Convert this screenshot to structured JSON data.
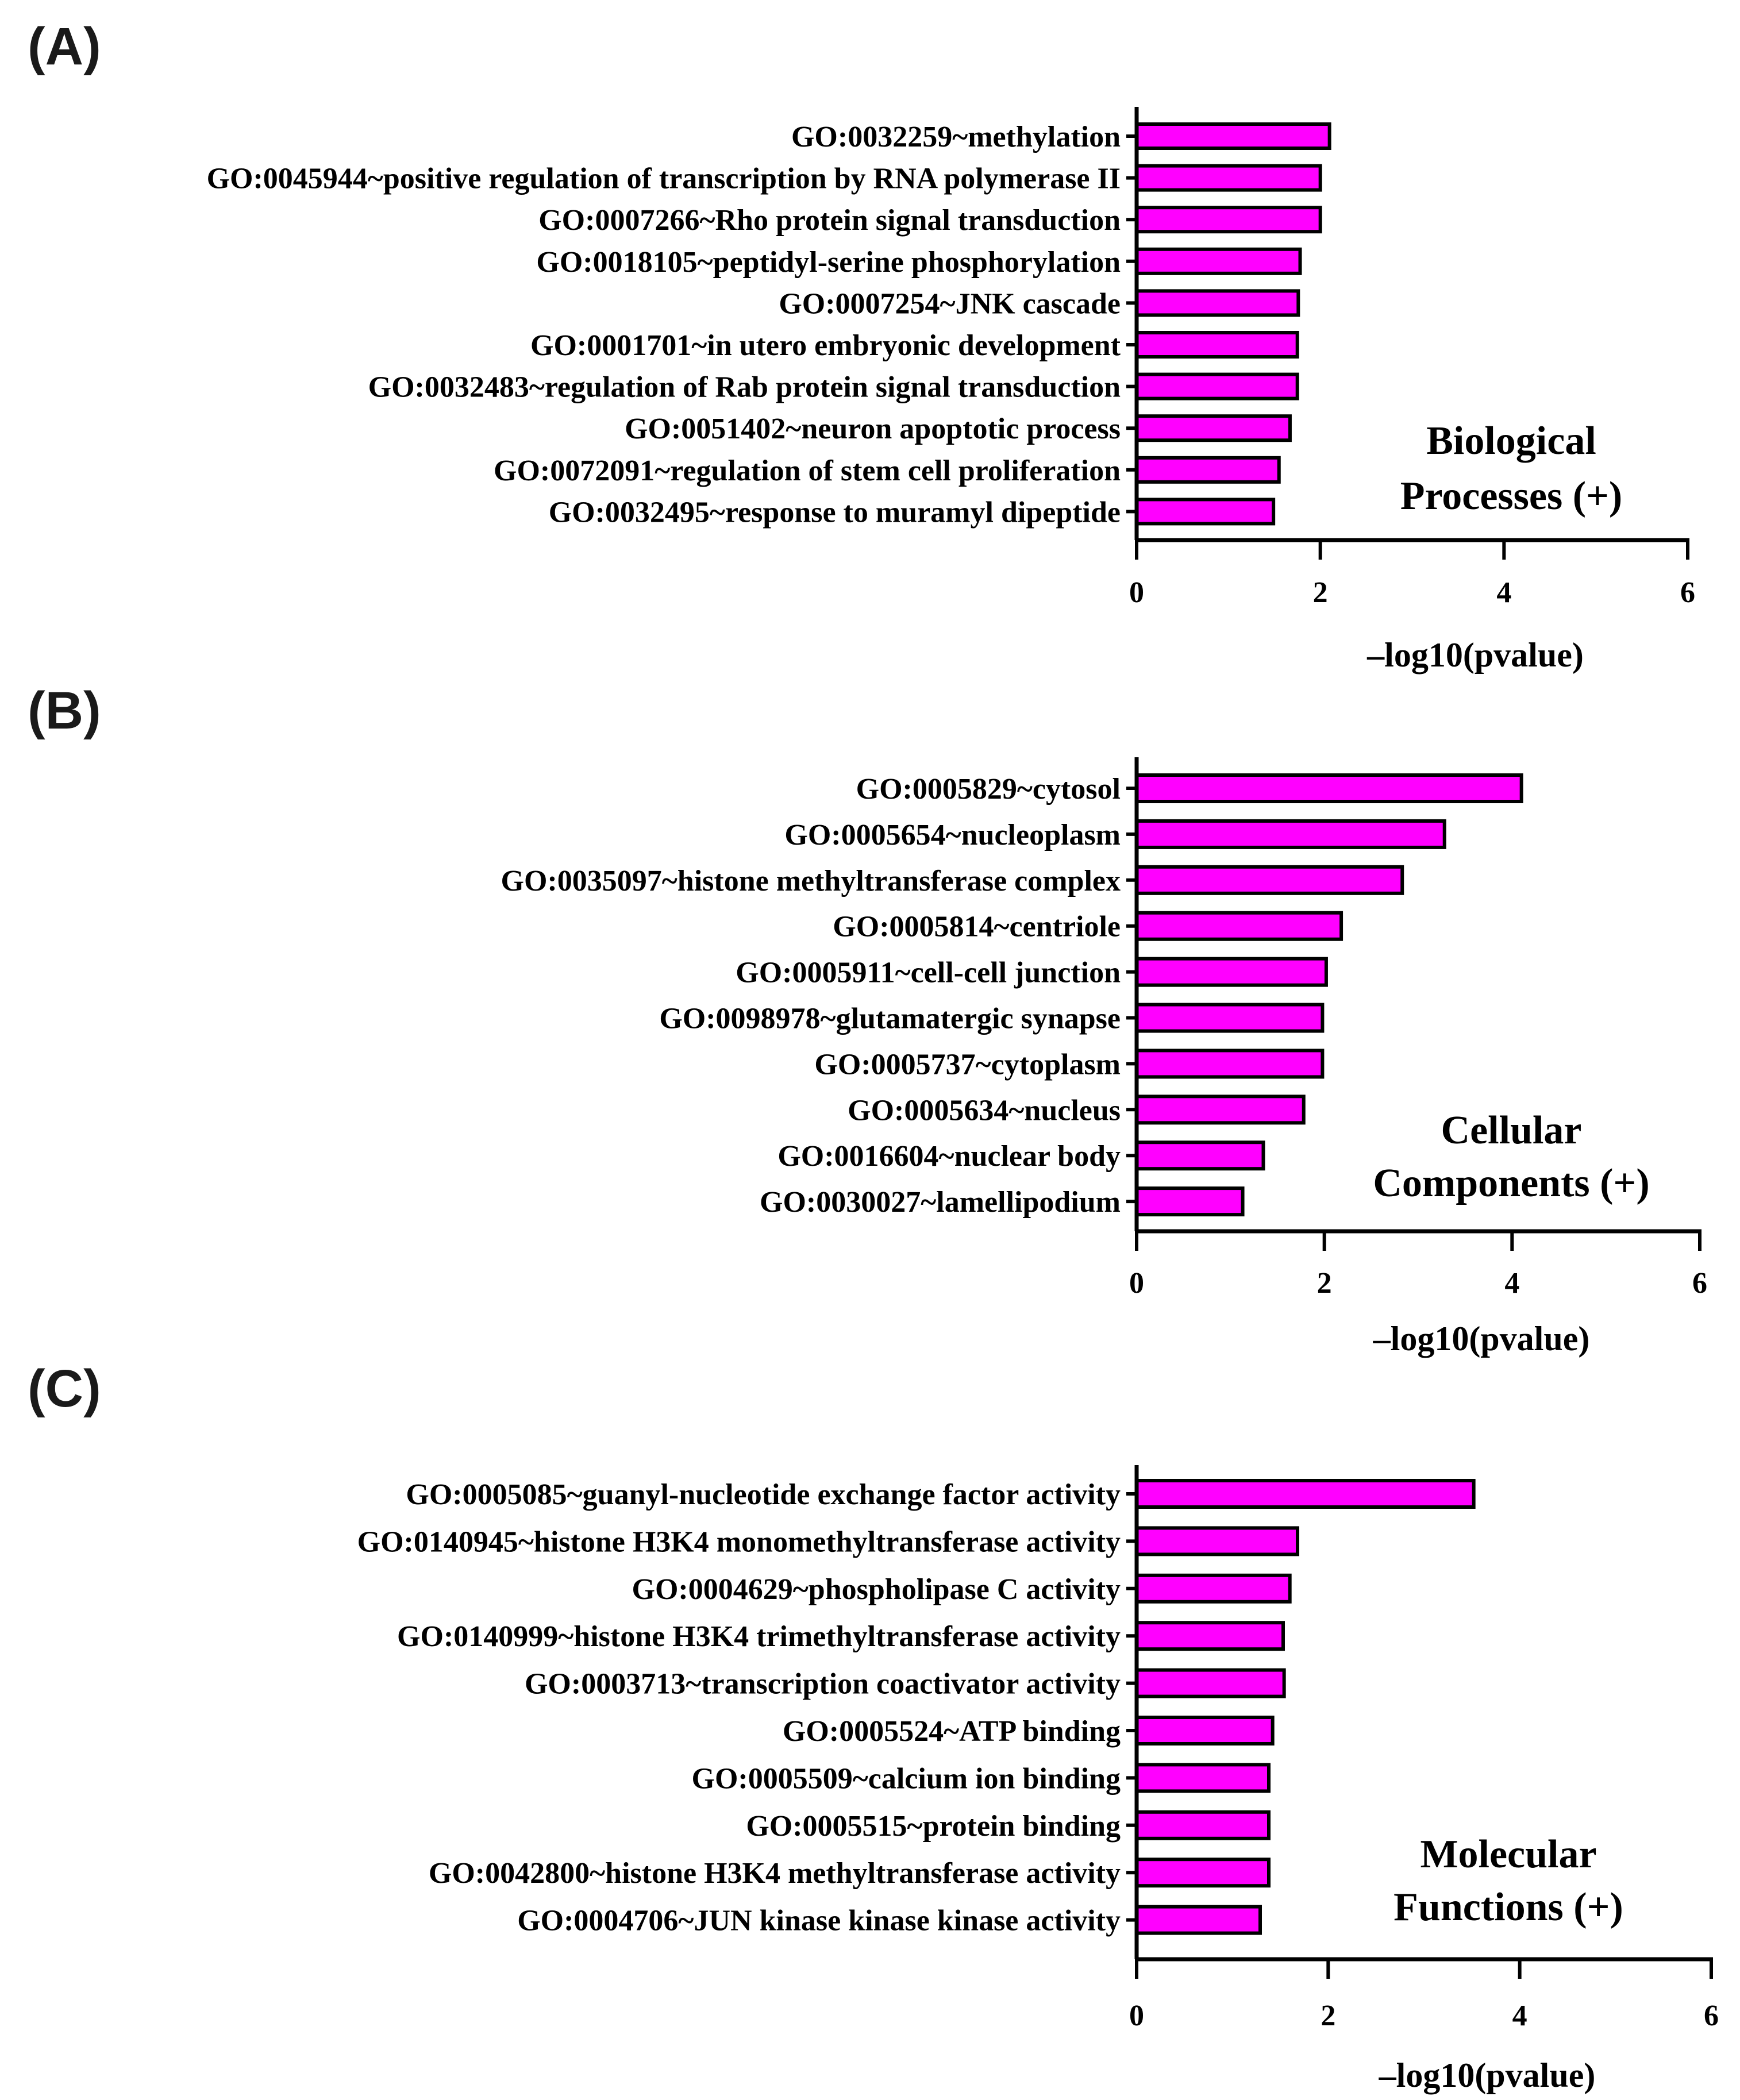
{
  "colors": {
    "bar_fill": "#FF00FF",
    "bar_stroke": "#000000",
    "axis": "#000000"
  },
  "chart_data": [
    {
      "type": "bar",
      "orientation": "horizontal",
      "panel_label": "(A)",
      "annotation": [
        "Biological",
        "Processes (+)"
      ],
      "xlabel": "–log10(pvalue)",
      "xlim": [
        0,
        6
      ],
      "xticks": [
        "0",
        "2",
        "4",
        "6"
      ],
      "categories": [
        "GO:0032259~methylation",
        "GO:0045944~positive regulation of transcription by RNA polymerase II",
        "GO:0007266~Rho protein signal transduction",
        "GO:0018105~peptidyl-serine phosphorylation",
        "GO:0007254~JNK cascade",
        "GO:0001701~in utero embryonic development",
        "GO:0032483~regulation of Rab protein signal transduction",
        "GO:0051402~neuron apoptotic process",
        "GO:0072091~regulation of stem cell proliferation",
        "GO:0032495~response to muramyl dipeptide"
      ],
      "values": [
        2.1,
        2.0,
        2.0,
        1.78,
        1.76,
        1.75,
        1.75,
        1.67,
        1.55,
        1.49
      ]
    },
    {
      "type": "bar",
      "orientation": "horizontal",
      "panel_label": "(B)",
      "annotation": [
        "Cellular",
        "Components (+)"
      ],
      "xlabel": "–log10(pvalue)",
      "xlim": [
        0,
        6
      ],
      "xticks": [
        "0",
        "2",
        "4",
        "6"
      ],
      "categories": [
        "GO:0005829~cytosol",
        "GO:0005654~nucleoplasm",
        "GO:0035097~histone methyltransferase complex",
        "GO:0005814~centriole",
        "GO:0005911~cell-cell junction",
        "GO:0098978~glutamatergic synapse",
        "GO:0005737~cytoplasm",
        "GO:0005634~nucleus",
        "GO:0016604~nuclear body",
        "GO:0030027~lamellipodium"
      ],
      "values": [
        4.1,
        3.28,
        2.83,
        2.18,
        2.02,
        1.98,
        1.98,
        1.78,
        1.35,
        1.13
      ]
    },
    {
      "type": "bar",
      "orientation": "horizontal",
      "panel_label": "(C)",
      "annotation": [
        "Molecular",
        "Functions (+)"
      ],
      "xlabel": "–log10(pvalue)",
      "xlim": [
        0,
        6
      ],
      "xticks": [
        "0",
        "2",
        "4",
        "6"
      ],
      "categories": [
        "GO:0005085~guanyl-nucleotide exchange factor activity",
        "GO:0140945~histone H3K4 monomethyltransferase activity",
        "GO:0004629~phospholipase C activity",
        "GO:0140999~histone H3K4 trimethyltransferase activity",
        "GO:0003713~transcription coactivator activity",
        "GO:0005524~ATP binding",
        "GO:0005509~calcium ion binding",
        "GO:0005515~protein binding",
        "GO:0042800~histone H3K4 methyltransferase activity",
        "GO:0004706~JUN kinase kinase kinase activity"
      ],
      "values": [
        3.52,
        1.68,
        1.6,
        1.53,
        1.54,
        1.42,
        1.38,
        1.38,
        1.38,
        1.29
      ]
    }
  ]
}
